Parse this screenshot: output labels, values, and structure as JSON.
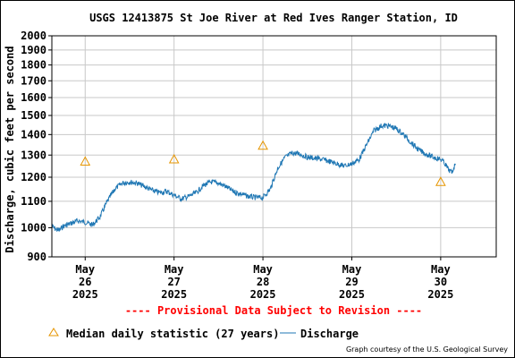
{
  "page": {
    "provisional_note": "---- Provisional Data Subject to Revision ----",
    "credit": "Graph courtesy of the U.S. Geological Survey"
  },
  "colors": {
    "discharge": "#1f77b4",
    "median": "#e69500",
    "provisional": "#ff0000",
    "grid": "#c8c8c8",
    "border": "#000000"
  },
  "chart_data": {
    "type": "line",
    "title": "USGS 12413875 St Joe River at Red Ives Ranger Station, ID",
    "ylabel": "Discharge, cubic feet per second",
    "xlabel": "",
    "y_scale": "log",
    "ylim": [
      900,
      2000
    ],
    "y_ticks": [
      900,
      1000,
      1100,
      1200,
      1300,
      1400,
      1500,
      1600,
      1700,
      1800,
      1900,
      2000
    ],
    "xlim": [
      "2025-05-25 15:00",
      "2025-05-30 15:00"
    ],
    "x_ticks": [
      {
        "x": "2025-05-26 00:00",
        "label": [
          "May",
          "26",
          "2025"
        ]
      },
      {
        "x": "2025-05-27 00:00",
        "label": [
          "May",
          "27",
          "2025"
        ]
      },
      {
        "x": "2025-05-28 00:00",
        "label": [
          "May",
          "28",
          "2025"
        ]
      },
      {
        "x": "2025-05-29 00:00",
        "label": [
          "May",
          "29",
          "2025"
        ]
      },
      {
        "x": "2025-05-30 00:00",
        "label": [
          "May",
          "30",
          "2025"
        ]
      }
    ],
    "grid": true,
    "legend": "bottom",
    "series": [
      {
        "name": "Discharge",
        "style": "line",
        "x": [
          "2025-05-25 15:00",
          "2025-05-25 16:00",
          "2025-05-25 17:00",
          "2025-05-25 18:00",
          "2025-05-25 20:00",
          "2025-05-25 22:00",
          "2025-05-26 00:00",
          "2025-05-26 02:00",
          "2025-05-26 04:00",
          "2025-05-26 06:00",
          "2025-05-26 08:00",
          "2025-05-26 10:00",
          "2025-05-26 12:00",
          "2025-05-26 14:00",
          "2025-05-26 16:00",
          "2025-05-26 18:00",
          "2025-05-26 20:00",
          "2025-05-26 22:00",
          "2025-05-27 00:00",
          "2025-05-27 02:00",
          "2025-05-27 04:00",
          "2025-05-27 06:00",
          "2025-05-27 08:00",
          "2025-05-27 10:00",
          "2025-05-27 12:00",
          "2025-05-27 14:00",
          "2025-05-27 16:00",
          "2025-05-27 18:00",
          "2025-05-27 20:00",
          "2025-05-27 22:00",
          "2025-05-28 00:00",
          "2025-05-28 02:00",
          "2025-05-28 04:00",
          "2025-05-28 06:00",
          "2025-05-28 08:00",
          "2025-05-28 10:00",
          "2025-05-28 12:00",
          "2025-05-28 14:00",
          "2025-05-28 16:00",
          "2025-05-28 18:00",
          "2025-05-28 20:00",
          "2025-05-28 22:00",
          "2025-05-29 00:00",
          "2025-05-29 02:00",
          "2025-05-29 04:00",
          "2025-05-29 06:00",
          "2025-05-29 08:00",
          "2025-05-29 10:00",
          "2025-05-29 12:00",
          "2025-05-29 14:00",
          "2025-05-29 16:00",
          "2025-05-29 18:00",
          "2025-05-29 20:00",
          "2025-05-29 22:00",
          "2025-05-30 00:00",
          "2025-05-30 01:00",
          "2025-05-30 02:00",
          "2025-05-30 03:00",
          "2025-05-30 04:00"
        ],
        "values": [
          1005,
          995,
          990,
          1005,
          1015,
          1025,
          1020,
          1010,
          1040,
          1100,
          1150,
          1175,
          1180,
          1175,
          1160,
          1145,
          1135,
          1140,
          1125,
          1110,
          1120,
          1135,
          1165,
          1180,
          1175,
          1160,
          1140,
          1130,
          1120,
          1115,
          1115,
          1150,
          1240,
          1290,
          1310,
          1305,
          1290,
          1285,
          1280,
          1270,
          1260,
          1250,
          1260,
          1280,
          1350,
          1420,
          1445,
          1445,
          1430,
          1400,
          1360,
          1325,
          1305,
          1290,
          1280,
          1265,
          1235,
          1220,
          1260
        ]
      },
      {
        "name": "Median daily statistic (27 years)",
        "style": "marker",
        "x": [
          "2025-05-26 00:00",
          "2025-05-27 00:00",
          "2025-05-28 00:00",
          "2025-05-30 00:00"
        ],
        "values": [
          1270,
          1280,
          1345,
          1180
        ]
      }
    ]
  }
}
